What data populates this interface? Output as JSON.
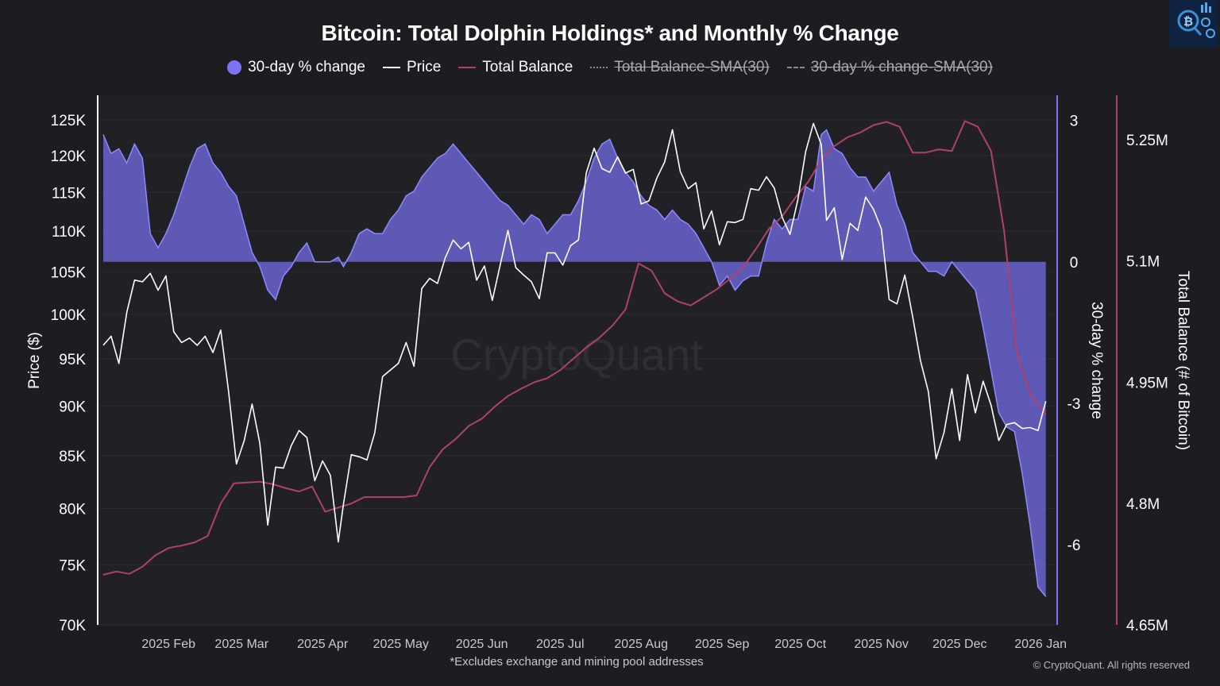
{
  "title": "Bitcoin: Total Dolphin Holdings* and Monthly % Change",
  "legend": [
    {
      "label": "30-day % change",
      "enabled": true
    },
    {
      "label": "Price",
      "enabled": true
    },
    {
      "label": "Total Balance",
      "enabled": true
    },
    {
      "label": "Total Balance-SMA(30)",
      "enabled": false
    },
    {
      "label": "30-day % change-SMA(30)",
      "enabled": false
    }
  ],
  "watermark": "CryptoQuant",
  "footnote": "*Excludes exchange and mining pool addresses",
  "copyright": "© CryptoQuant. All rights reserved",
  "colors": {
    "background": "#1d1d21",
    "plot_background": "#202025",
    "pct_fill": "#6b66d6",
    "pct_line": "#8f89ff",
    "price": "#ffffff",
    "balance": "#b0406e",
    "mid_axis": "#7b74f4"
  },
  "chart_data": {
    "type": "line",
    "title": "Bitcoin: Total Dolphin Holdings* and Monthly % Change",
    "x_ticks": [
      "2025 Feb",
      "2025 Mar",
      "2025 Apr",
      "2025 May",
      "2025 Jun",
      "2025 Jul",
      "2025 Aug",
      "2025 Sep",
      "2025 Oct",
      "2025 Nov",
      "2025 Dec",
      "2026 Jan"
    ],
    "x_range": [
      "2025-01-07",
      "2026-01-04"
    ],
    "y_left": {
      "label": "Price ($)",
      "scale": "log",
      "range": [
        70000,
        128000
      ],
      "ticks": [
        70000,
        75000,
        80000,
        85000,
        90000,
        95000,
        100000,
        105000,
        110000,
        115000,
        120000,
        125000
      ],
      "tick_labels": [
        "70K",
        "75K",
        "80K",
        "85K",
        "90K",
        "95K",
        "100K",
        "105K",
        "110K",
        "115K",
        "120K",
        "125K"
      ]
    },
    "y_mid": {
      "label": "30-day % change",
      "range": [
        -7.7,
        3.45
      ],
      "ticks": [
        3,
        0,
        -3,
        -6
      ],
      "tick_labels": [
        "3",
        "0",
        "-3",
        "-6"
      ]
    },
    "y_right": {
      "label": "Total Balance (# of Bitcoin)",
      "range": [
        4650000,
        5300000
      ],
      "ticks": [
        5250000,
        5100000,
        4950000,
        4800000,
        4650000
      ],
      "tick_labels": [
        "5.25M",
        "5.1M",
        "4.95M",
        "4.8M",
        "4.65M"
      ]
    },
    "series": [
      {
        "name": "Price",
        "axis": "left",
        "x": [
          "2025-01-07",
          "2025-01-10",
          "2025-01-13",
          "2025-01-16",
          "2025-01-19",
          "2025-01-22",
          "2025-01-25",
          "2025-01-28",
          "2025-01-31",
          "2025-02-03",
          "2025-02-06",
          "2025-02-09",
          "2025-02-12",
          "2025-02-15",
          "2025-02-18",
          "2025-02-21",
          "2025-02-24",
          "2025-02-27",
          "2025-03-02",
          "2025-03-05",
          "2025-03-08",
          "2025-03-11",
          "2025-03-14",
          "2025-03-17",
          "2025-03-20",
          "2025-03-23",
          "2025-03-26",
          "2025-03-29",
          "2025-04-01",
          "2025-04-04",
          "2025-04-07",
          "2025-04-09",
          "2025-04-12",
          "2025-04-15",
          "2025-04-18",
          "2025-04-21",
          "2025-04-24",
          "2025-04-27",
          "2025-04-30",
          "2025-05-03",
          "2025-05-06",
          "2025-05-09",
          "2025-05-12",
          "2025-05-15",
          "2025-05-18",
          "2025-05-21",
          "2025-05-24",
          "2025-05-27",
          "2025-05-30",
          "2025-06-02",
          "2025-06-05",
          "2025-06-08",
          "2025-06-11",
          "2025-06-14",
          "2025-06-17",
          "2025-06-20",
          "2025-06-23",
          "2025-06-26",
          "2025-06-29",
          "2025-07-02",
          "2025-07-05",
          "2025-07-08",
          "2025-07-11",
          "2025-07-14",
          "2025-07-17",
          "2025-07-20",
          "2025-07-23",
          "2025-07-26",
          "2025-07-29",
          "2025-08-01",
          "2025-08-04",
          "2025-08-07",
          "2025-08-10",
          "2025-08-13",
          "2025-08-16",
          "2025-08-19",
          "2025-08-22",
          "2025-08-25",
          "2025-08-28",
          "2025-08-31",
          "2025-09-03",
          "2025-09-06",
          "2025-09-09",
          "2025-09-12",
          "2025-09-15",
          "2025-09-18",
          "2025-09-21",
          "2025-09-24",
          "2025-09-27",
          "2025-09-30",
          "2025-10-03",
          "2025-10-06",
          "2025-10-09",
          "2025-10-11",
          "2025-10-14",
          "2025-10-17",
          "2025-10-20",
          "2025-10-23",
          "2025-10-26",
          "2025-10-29",
          "2025-11-01",
          "2025-11-04",
          "2025-11-07",
          "2025-11-10",
          "2025-11-13",
          "2025-11-16",
          "2025-11-19",
          "2025-11-22",
          "2025-11-25",
          "2025-11-28",
          "2025-12-01",
          "2025-12-04",
          "2025-12-07",
          "2025-12-10",
          "2025-12-13",
          "2025-12-16",
          "2025-12-19",
          "2025-12-22",
          "2025-12-25",
          "2025-12-28",
          "2025-12-31",
          "2026-01-03"
        ],
        "values": [
          96500,
          97500,
          94500,
          100200,
          104000,
          103800,
          104800,
          102800,
          104500,
          98000,
          96800,
          97300,
          96500,
          97500,
          95700,
          98200,
          91500,
          84200,
          86500,
          90200,
          86200,
          78500,
          83900,
          83800,
          86000,
          87500,
          86800,
          82600,
          84500,
          83100,
          77000,
          80400,
          85100,
          84900,
          84600,
          87300,
          93100,
          93800,
          94500,
          96800,
          94200,
          103000,
          104200,
          103600,
          106700,
          108900,
          107800,
          108600,
          104000,
          105700,
          101600,
          105800,
          110100,
          105500,
          104600,
          103800,
          101800,
          107300,
          107300,
          105800,
          108200,
          108900,
          117600,
          121000,
          118200,
          117700,
          119800,
          117600,
          118100,
          113500,
          113900,
          116900,
          119100,
          123600,
          117800,
          115500,
          116300,
          110300,
          112600,
          108300,
          111200,
          111100,
          111500,
          115500,
          115300,
          117100,
          115600,
          111800,
          109600,
          114000,
          120500,
          124500,
          121500,
          111400,
          113000,
          106500,
          111000,
          110100,
          114400,
          112800,
          110300,
          101700,
          101200,
          104600,
          99700,
          94800,
          91500,
          84700,
          87300,
          91800,
          86500,
          93300,
          89300,
          92600,
          90100,
          86500,
          88100,
          88300,
          87700,
          87800,
          87500,
          90500
        ]
      },
      {
        "name": "Total Balance",
        "axis": "right",
        "x": [
          "2025-01-07",
          "2025-01-12",
          "2025-01-17",
          "2025-01-22",
          "2025-01-27",
          "2025-02-01",
          "2025-02-06",
          "2025-02-11",
          "2025-02-16",
          "2025-02-21",
          "2025-02-26",
          "2025-03-03",
          "2025-03-08",
          "2025-03-13",
          "2025-03-18",
          "2025-03-23",
          "2025-03-28",
          "2025-04-02",
          "2025-04-07",
          "2025-04-12",
          "2025-04-17",
          "2025-04-22",
          "2025-04-27",
          "2025-05-02",
          "2025-05-07",
          "2025-05-12",
          "2025-05-17",
          "2025-05-22",
          "2025-05-27",
          "2025-06-01",
          "2025-06-06",
          "2025-06-11",
          "2025-06-16",
          "2025-06-21",
          "2025-06-26",
          "2025-07-01",
          "2025-07-06",
          "2025-07-11",
          "2025-07-16",
          "2025-07-21",
          "2025-07-26",
          "2025-07-31",
          "2025-08-05",
          "2025-08-10",
          "2025-08-15",
          "2025-08-20",
          "2025-08-25",
          "2025-08-30",
          "2025-09-04",
          "2025-09-09",
          "2025-09-14",
          "2025-09-19",
          "2025-09-24",
          "2025-09-29",
          "2025-10-04",
          "2025-10-09",
          "2025-10-14",
          "2025-10-19",
          "2025-10-24",
          "2025-10-29",
          "2025-11-03",
          "2025-11-08",
          "2025-11-13",
          "2025-11-18",
          "2025-11-23",
          "2025-11-28",
          "2025-12-03",
          "2025-12-08",
          "2025-12-13",
          "2025-12-18",
          "2025-12-23",
          "2025-12-28",
          "2026-01-03"
        ],
        "values": [
          4712000,
          4716000,
          4713000,
          4722000,
          4736000,
          4745000,
          4748000,
          4752000,
          4760000,
          4800000,
          4825000,
          4826000,
          4827000,
          4824000,
          4819000,
          4815000,
          4821000,
          4790000,
          4795000,
          4800000,
          4808000,
          4808000,
          4808000,
          4808000,
          4810000,
          4845000,
          4867000,
          4880000,
          4896000,
          4905000,
          4920000,
          4933000,
          4942000,
          4950000,
          4955000,
          4965000,
          4979000,
          4993000,
          5005000,
          5020000,
          5040000,
          5097000,
          5088000,
          5060000,
          5050000,
          5045000,
          5055000,
          5065000,
          5078000,
          5092000,
          5115000,
          5140000,
          5155000,
          5178000,
          5198000,
          5225000,
          5242000,
          5253000,
          5259000,
          5268000,
          5272000,
          5266000,
          5234000,
          5234000,
          5238000,
          5236000,
          5273000,
          5266000,
          5236000,
          5138000,
          4985000,
          4935000,
          4910000
        ]
      },
      {
        "name": "30-day % change",
        "axis": "mid",
        "x": [
          "2025-01-07",
          "2025-01-10",
          "2025-01-13",
          "2025-01-16",
          "2025-01-19",
          "2025-01-22",
          "2025-01-25",
          "2025-01-28",
          "2025-01-31",
          "2025-02-03",
          "2025-02-06",
          "2025-02-09",
          "2025-02-12",
          "2025-02-15",
          "2025-02-18",
          "2025-02-21",
          "2025-02-24",
          "2025-02-27",
          "2025-03-02",
          "2025-03-05",
          "2025-03-08",
          "2025-03-11",
          "2025-03-14",
          "2025-03-17",
          "2025-03-20",
          "2025-03-23",
          "2025-03-26",
          "2025-03-29",
          "2025-04-01",
          "2025-04-04",
          "2025-04-07",
          "2025-04-09",
          "2025-04-12",
          "2025-04-15",
          "2025-04-18",
          "2025-04-21",
          "2025-04-24",
          "2025-04-27",
          "2025-04-30",
          "2025-05-03",
          "2025-05-06",
          "2025-05-09",
          "2025-05-12",
          "2025-05-15",
          "2025-05-18",
          "2025-05-21",
          "2025-05-24",
          "2025-05-27",
          "2025-05-30",
          "2025-06-02",
          "2025-06-05",
          "2025-06-08",
          "2025-06-11",
          "2025-06-14",
          "2025-06-17",
          "2025-06-20",
          "2025-06-23",
          "2025-06-26",
          "2025-06-29",
          "2025-07-02",
          "2025-07-05",
          "2025-07-08",
          "2025-07-11",
          "2025-07-14",
          "2025-07-17",
          "2025-07-20",
          "2025-07-23",
          "2025-07-26",
          "2025-07-29",
          "2025-08-01",
          "2025-08-04",
          "2025-08-07",
          "2025-08-10",
          "2025-08-13",
          "2025-08-16",
          "2025-08-19",
          "2025-08-22",
          "2025-08-25",
          "2025-08-28",
          "2025-08-31",
          "2025-09-03",
          "2025-09-06",
          "2025-09-09",
          "2025-09-12",
          "2025-09-15",
          "2025-09-18",
          "2025-09-21",
          "2025-09-24",
          "2025-09-27",
          "2025-09-30",
          "2025-10-03",
          "2025-10-06",
          "2025-10-09",
          "2025-10-11",
          "2025-10-14",
          "2025-10-17",
          "2025-10-20",
          "2025-10-23",
          "2025-10-26",
          "2025-10-29",
          "2025-11-01",
          "2025-11-04",
          "2025-11-07",
          "2025-11-10",
          "2025-11-13",
          "2025-11-16",
          "2025-11-19",
          "2025-11-22",
          "2025-11-25",
          "2025-11-28",
          "2025-12-01",
          "2025-12-04",
          "2025-12-07",
          "2025-12-10",
          "2025-12-13",
          "2025-12-16",
          "2025-12-19",
          "2025-12-22",
          "2025-12-25",
          "2025-12-28",
          "2025-12-31",
          "2026-01-03"
        ],
        "values": [
          2.7,
          2.3,
          2.4,
          2.1,
          2.5,
          2.2,
          0.6,
          0.3,
          0.6,
          1.0,
          1.5,
          2.0,
          2.4,
          2.5,
          2.1,
          1.9,
          1.6,
          1.4,
          0.8,
          0.2,
          -0.1,
          -0.6,
          -0.8,
          -0.3,
          -0.1,
          0.2,
          0.4,
          0.0,
          0.0,
          0.0,
          0.1,
          -0.1,
          0.2,
          0.6,
          0.7,
          0.6,
          0.6,
          0.9,
          1.1,
          1.4,
          1.5,
          1.8,
          2.0,
          2.2,
          2.3,
          2.5,
          2.3,
          2.1,
          1.9,
          1.7,
          1.5,
          1.3,
          1.2,
          1.0,
          0.8,
          1.0,
          0.9,
          0.6,
          0.8,
          1.0,
          1.0,
          1.3,
          1.7,
          2.2,
          2.5,
          2.6,
          2.2,
          1.9,
          1.7,
          1.4,
          1.2,
          1.1,
          0.9,
          1.1,
          0.9,
          0.8,
          0.6,
          0.3,
          0.0,
          -0.5,
          -0.3,
          -0.6,
          -0.4,
          -0.3,
          -0.3,
          0.4,
          0.9,
          0.7,
          0.9,
          0.9,
          1.6,
          1.5,
          2.7,
          2.8,
          2.4,
          2.3,
          2.0,
          1.8,
          1.8,
          1.5,
          1.7,
          1.9,
          1.2,
          0.8,
          0.2,
          0.0,
          -0.2,
          -0.2,
          -0.3,
          0.0,
          -0.2,
          -0.4,
          -0.6,
          -1.4,
          -2.3,
          -3.2,
          -3.5,
          -3.6,
          -4.5,
          -5.6,
          -6.9,
          -7.1
        ]
      }
    ]
  }
}
